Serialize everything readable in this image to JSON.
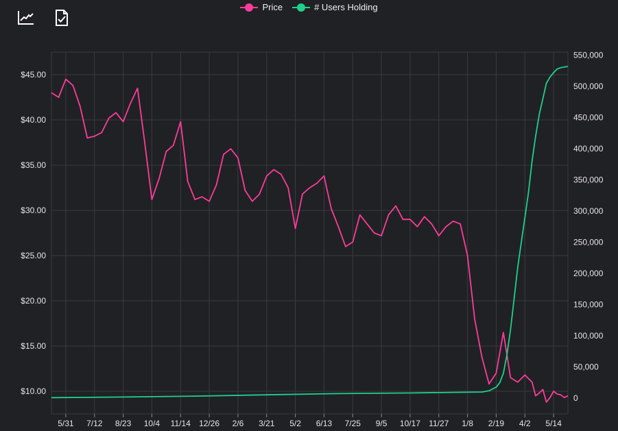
{
  "toolbar": {
    "icons": [
      "line-chart-icon",
      "document-check-icon"
    ]
  },
  "colors": {
    "price": "#ff3c9a",
    "users": "#1fd18a",
    "grid": "#3a3b40",
    "background": "#202125"
  },
  "chart_data": {
    "type": "line",
    "title": "",
    "legend_position": "top-center",
    "grid": true,
    "x_ticks": [
      "5/31",
      "7/12",
      "8/23",
      "10/4",
      "11/14",
      "12/26",
      "2/6",
      "3/21",
      "5/2",
      "6/13",
      "7/25",
      "9/5",
      "10/17",
      "11/27",
      "1/8",
      "2/19",
      "4/2",
      "5/14"
    ],
    "y_left": {
      "ticks": [
        "$10.00",
        "$15.00",
        "$20.00",
        "$25.00",
        "$30.00",
        "$35.00",
        "$40.00",
        "$45.00"
      ],
      "ylim": [
        7.5,
        47.5
      ]
    },
    "y_right": {
      "ticks": [
        "0",
        "50,000",
        "100,000",
        "150,000",
        "200,000",
        "250,000",
        "300,000",
        "350,000",
        "400,000",
        "450,000",
        "500,000",
        "550,000"
      ],
      "ylim": [
        -25000,
        555000
      ]
    },
    "x_range": [
      0,
      720
    ],
    "series": [
      {
        "name": "Price",
        "axis": "left",
        "x": [
          0,
          10,
          20,
          30,
          40,
          50,
          60,
          70,
          80,
          90,
          100,
          110,
          120,
          130,
          140,
          150,
          160,
          170,
          180,
          190,
          200,
          210,
          220,
          230,
          240,
          250,
          260,
          270,
          280,
          290,
          300,
          310,
          320,
          330,
          340,
          350,
          360,
          370,
          380,
          390,
          400,
          410,
          420,
          430,
          440,
          450,
          460,
          470,
          480,
          490,
          500,
          510,
          520,
          530,
          540,
          550,
          560,
          570,
          580,
          590,
          600,
          610,
          620,
          630,
          640,
          650,
          660,
          670,
          675,
          680,
          685,
          690,
          695,
          700,
          705,
          710,
          715,
          720
        ],
        "values": [
          43.0,
          42.5,
          44.5,
          43.8,
          41.5,
          38.0,
          38.2,
          38.6,
          40.2,
          40.8,
          39.8,
          41.8,
          43.5,
          37.5,
          31.2,
          33.5,
          36.5,
          37.2,
          39.8,
          33.2,
          31.2,
          31.5,
          31.0,
          32.8,
          36.2,
          36.8,
          35.8,
          32.2,
          31.0,
          31.8,
          33.8,
          34.5,
          34.0,
          32.5,
          28.0,
          31.8,
          32.5,
          33.0,
          33.8,
          30.2,
          28.2,
          26.0,
          26.5,
          29.5,
          28.5,
          27.5,
          27.2,
          29.5,
          30.5,
          29.0,
          29.0,
          28.2,
          29.3,
          28.5,
          27.2,
          28.2,
          28.8,
          28.5,
          25.0,
          18.0,
          13.8,
          10.8,
          12.0,
          16.5,
          11.5,
          11.0,
          11.8,
          11.0,
          9.5,
          9.8,
          10.2,
          8.8,
          9.3,
          10.0,
          9.7,
          9.6,
          9.3,
          9.5
        ]
      },
      {
        "name": "# Users Holding",
        "axis": "right",
        "x": [
          0,
          100,
          200,
          300,
          400,
          500,
          560,
          600,
          610,
          620,
          625,
          630,
          635,
          640,
          645,
          650,
          655,
          660,
          665,
          670,
          675,
          680,
          685,
          690,
          695,
          700,
          705,
          710,
          715,
          720
        ],
        "values": [
          1000,
          2000,
          3500,
          5500,
          7500,
          8500,
          9500,
          10000,
          12000,
          18000,
          25000,
          40000,
          70000,
          110000,
          160000,
          210000,
          250000,
          290000,
          330000,
          380000,
          420000,
          455000,
          480000,
          505000,
          515000,
          522000,
          528000,
          530000,
          531000,
          532000
        ]
      }
    ]
  }
}
